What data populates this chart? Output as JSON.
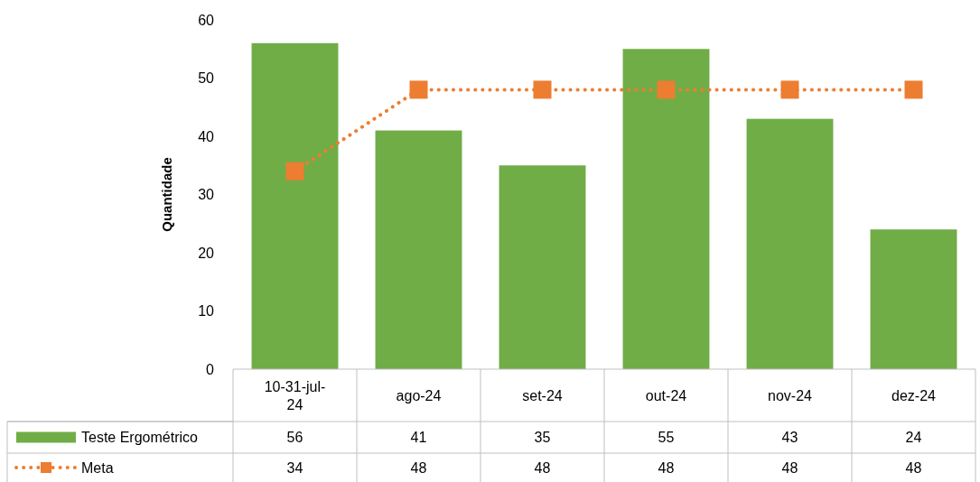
{
  "chart_data": {
    "type": "bar",
    "ylabel": "Quantidade",
    "categories": [
      "10-31-jul-24",
      "ago-24",
      "set-24",
      "out-24",
      "nov-24",
      "dez-24"
    ],
    "series": [
      {
        "name": "Teste Ergométrico",
        "color": "#70ad47",
        "values": [
          56,
          41,
          35,
          55,
          43,
          24
        ]
      },
      {
        "name": "Meta",
        "type": "line",
        "color": "#ed7d31",
        "values": [
          34,
          48,
          48,
          48,
          48,
          48
        ]
      }
    ],
    "ylim": [
      0,
      60
    ],
    "yticks": [
      0,
      10,
      20,
      30,
      40,
      50,
      60
    ],
    "grid": false,
    "legend": "bottom",
    "data_labels": true,
    "marker": "square",
    "line_style": "dotted"
  }
}
